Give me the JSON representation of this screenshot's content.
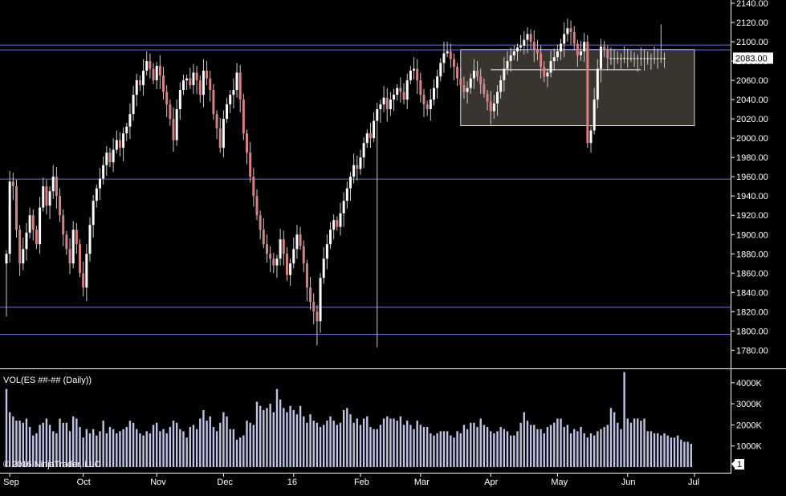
{
  "indicator_title": "VOL(ES ##-## (Daily))",
  "copyright": "© 2016 NinjaTrader, LLC",
  "price_badge": "2083.00",
  "panel_badge": "1",
  "colors": {
    "background": "#000000",
    "up_candle": "#ffffff",
    "down_candle": "#d98080",
    "wick": "#cccccc",
    "line": "#6f6fe0",
    "zone_fill": "#3a342f",
    "zone_border": "#d8d8d8",
    "volume": "#bfc4e6",
    "grid_text": "#ffffff"
  },
  "chart_data": {
    "type": "candlestick",
    "y_axis": {
      "range": [
        1770,
        2140
      ],
      "ticks": [
        2140,
        2120,
        2100,
        2080,
        2060,
        2040,
        2020,
        2000,
        1980,
        1960,
        1940,
        1920,
        1900,
        1880,
        1860,
        1840,
        1820,
        1800,
        1780
      ],
      "tick_labels": [
        "2140.00",
        "2120.00",
        "2100.00",
        "2080.00",
        "2060.00",
        "2040.00",
        "2020.00",
        "2000.00",
        "1980.00",
        "1960.00",
        "1940.00",
        "1920.00",
        "1900.00",
        "1880.00",
        "1860.00",
        "1840.00",
        "1820.00",
        "1800.00",
        "1780.00"
      ]
    },
    "x_axis": {
      "labels": [
        "Sep",
        "Oct",
        "Nov",
        "Dec",
        "16",
        "Feb",
        "Mar",
        "Apr",
        "May",
        "Jun",
        "Jul"
      ],
      "label_bar_index": [
        1,
        23,
        45,
        65,
        86,
        106,
        124,
        145,
        165,
        186,
        206
      ]
    },
    "horizontal_lines": [
      2097,
      2092,
      1958,
      1825,
      1797
    ],
    "consolidation_zone": {
      "bar_start": 136,
      "bar_end": 206,
      "price_high": 2092,
      "price_low": 2013
    },
    "midline": {
      "bar_start": 145,
      "bar_end": 190,
      "price": 2071
    },
    "closes": [
      1880,
      1955,
      1950,
      1905,
      1870,
      1885,
      1902,
      1920,
      1905,
      1890,
      1928,
      1950,
      1930,
      1945,
      1960,
      1940,
      1920,
      1900,
      1885,
      1870,
      1905,
      1890,
      1860,
      1845,
      1880,
      1910,
      1935,
      1948,
      1958,
      1972,
      1985,
      1975,
      1988,
      1998,
      1990,
      2005,
      2012,
      2025,
      2045,
      2060,
      2055,
      2070,
      2080,
      2072,
      2060,
      2075,
      2065,
      2048,
      2035,
      2020,
      1998,
      2030,
      2050,
      2060,
      2062,
      2055,
      2068,
      2060,
      2045,
      2070,
      2062,
      2050,
      2025,
      2010,
      1990,
      2020,
      2035,
      2045,
      2050,
      2068,
      2040,
      2005,
      1985,
      1960,
      1940,
      1920,
      1905,
      1890,
      1880,
      1875,
      1868,
      1875,
      1895,
      1880,
      1858,
      1870,
      1885,
      1900,
      1888,
      1870,
      1845,
      1830,
      1820,
      1810,
      1855,
      1875,
      1890,
      1905,
      1915,
      1908,
      1922,
      1935,
      1948,
      1960,
      1972,
      1968,
      1980,
      1995,
      2005,
      2000,
      2018,
      2030,
      2035,
      2042,
      2030,
      2040,
      2045,
      2052,
      2048,
      2040,
      2060,
      2070,
      2072,
      2060,
      2045,
      2035,
      2030,
      2040,
      2052,
      2064,
      2078,
      2088,
      2090,
      2082,
      2074,
      2062,
      2055,
      2048,
      2052,
      2062,
      2070,
      2064,
      2056,
      2046,
      2038,
      2028,
      2036,
      2048,
      2060,
      2072,
      2080,
      2086,
      2090,
      2094,
      2096,
      2102,
      2108,
      2100,
      2092,
      2088,
      2074,
      2064,
      2068,
      2080,
      2084,
      2090,
      2098,
      2108,
      2114,
      2110,
      2098,
      2086,
      2090,
      2100,
      1995,
      2008,
      2040,
      2072,
      2095,
      2092,
      2083,
      2083,
      2083,
      2083,
      2083,
      2083,
      2083,
      2083,
      2083,
      2083,
      2083,
      2083,
      2083,
      2083,
      2083,
      2083,
      2083,
      2083
    ],
    "volume_k": [
      3700,
      2600,
      2400,
      2200,
      2200,
      2100,
      2300,
      1900,
      1500,
      1600,
      2000,
      2100,
      2300,
      2000,
      1700,
      1600,
      2300,
      2100,
      2100,
      1700,
      2400,
      2300,
      1900,
      1400,
      1800,
      1600,
      1800,
      1500,
      1700,
      2200,
      1600,
      1900,
      1800,
      1600,
      1700,
      1800,
      1900,
      2200,
      2100,
      1800,
      1600,
      1500,
      1700,
      1600,
      2000,
      2100,
      1700,
      1800,
      1600,
      1900,
      2200,
      2100,
      1800,
      1700,
      1400,
      1900,
      2000,
      1800,
      2300,
      2700,
      2200,
      2400,
      1900,
      1700,
      2100,
      2600,
      2400,
      1800,
      1800,
      1300,
      1400,
      1500,
      2200,
      2100,
      2000,
      3100,
      2900,
      2700,
      2800,
      3000,
      2600,
      3700,
      3200,
      2800,
      2600,
      2900,
      2700,
      2500,
      2900,
      2400,
      2100,
      2500,
      2200,
      2100,
      1900,
      2000,
      2200,
      2400,
      2200,
      2000,
      2100,
      2700,
      2800,
      2500,
      2100,
      2300,
      2000,
      2300,
      2400,
      1900,
      1800,
      1800,
      2000,
      2300,
      2400,
      2300,
      2300,
      2200,
      2400,
      2000,
      2200,
      2000,
      1800,
      2200,
      2000,
      1900,
      1900,
      1600,
      1500,
      1600,
      1700,
      1700,
      1700,
      1500,
      1400,
      1700,
      1600,
      2000,
      1800,
      2100,
      2100,
      1900,
      2300,
      2000,
      1900,
      1700,
      1600,
      1700,
      1900,
      1800,
      1700,
      1500,
      1500,
      1700,
      2100,
      2600,
      2200,
      2000,
      2000,
      1800,
      1800,
      1600,
      1900,
      2000,
      2100,
      2300,
      2300,
      1900,
      2000,
      1600,
      1800,
      1700,
      1900,
      1600,
      1400,
      1600,
      1500,
      1700,
      1800,
      1900,
      2000,
      2800,
      2600,
      2100,
      1800,
      4500,
      2300,
      2100,
      2300,
      2300,
      2200,
      2300,
      1700,
      1700,
      1600,
      1600,
      1500,
      1600,
      1500,
      1400,
      1400,
      1500,
      1300,
      1200,
      1200,
      1100
    ],
    "volume_axis": {
      "range": [
        0,
        4600
      ],
      "ticks": [
        4000,
        3000,
        2000,
        1000
      ],
      "tick_labels": [
        "4000K",
        "3000K",
        "2000K",
        "1000K"
      ]
    }
  }
}
